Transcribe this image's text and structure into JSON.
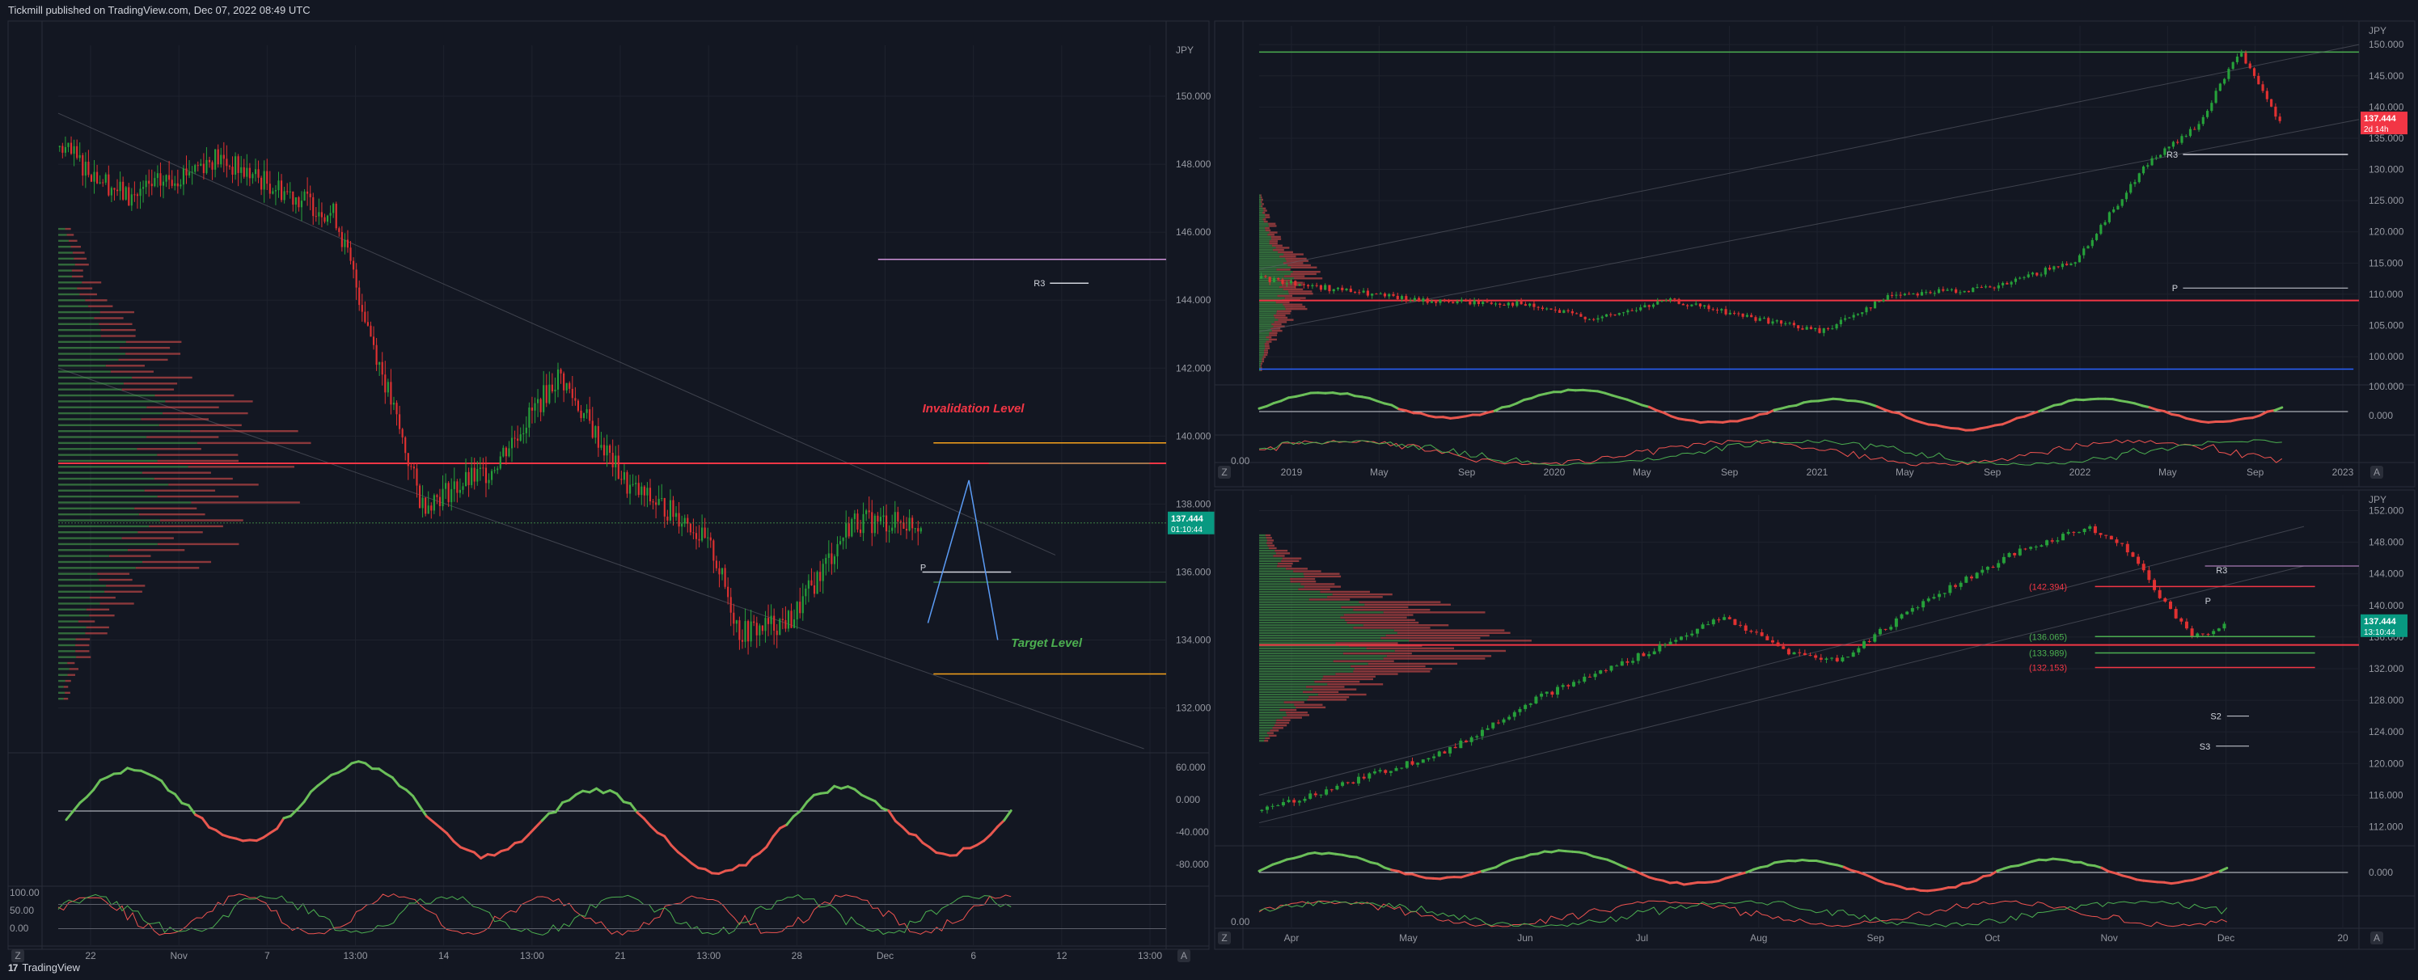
{
  "header": {
    "text": "Tickmill published on TradingView.com, Dec 07, 2022 08:49 UTC"
  },
  "footer": {
    "logo": "17",
    "brand": "TradingView"
  },
  "colors": {
    "bg": "#131722",
    "up": "#089981",
    "up_bright": "#26a69a",
    "green": "#4caf50",
    "red": "#f23645",
    "red_soft": "#ef5350",
    "grid": "#1e222d",
    "text": "#9598a1"
  },
  "chart_data": [
    {
      "id": "left",
      "type": "candlestick",
      "currency": "JPY",
      "price_axis": [
        "150.000",
        "148.000",
        "146.000",
        "144.000",
        "142.000",
        "140.000",
        "138.000",
        "136.000",
        "134.000",
        "132.000"
      ],
      "ylim": [
        130.8,
        151.5
      ],
      "time_axis": [
        "22",
        "Nov",
        "7",
        "13:00",
        "14",
        "13:00",
        "21",
        "13:00",
        "28",
        "Dec",
        "6",
        "12",
        "13:00"
      ],
      "last_price": "137.444",
      "countdown": "01:10:44",
      "annotations": [
        "Invalidation Level",
        "Target Level",
        "R3",
        "P"
      ],
      "levels": {
        "invalidation": 139.8,
        "target": 133.0,
        "poc": 139.2,
        "r3": 144.5,
        "pivot": 136.0,
        "last": 137.444
      },
      "rsi_axis": [
        "60.000",
        "0.000",
        "-40.000",
        "-80.000"
      ],
      "stoch_axis": [
        "100.00",
        "50.00",
        "0.00"
      ]
    },
    {
      "id": "top-right",
      "type": "candlestick",
      "currency": "JPY",
      "price_axis": [
        "150.000",
        "145.000",
        "140.000",
        "135.000",
        "130.000",
        "125.000",
        "120.000",
        "115.000",
        "110.000",
        "105.000",
        "100.000"
      ],
      "ylim": [
        96,
        153
      ],
      "time_axis": [
        "2019",
        "May",
        "Sep",
        "2020",
        "May",
        "Sep",
        "2021",
        "May",
        "Sep",
        "2022",
        "May",
        "Sep",
        "2023"
      ],
      "last_price": "137.444",
      "countdown": "2d 14h",
      "annotations": [
        "R3",
        "P"
      ],
      "rsi_axis": [
        "100.000",
        "0.000"
      ],
      "stoch_axis": [
        "0.00"
      ]
    },
    {
      "id": "bottom-right",
      "type": "candlestick",
      "currency": "JPY",
      "price_axis": [
        "152.000",
        "148.000",
        "144.000",
        "140.000",
        "136.000",
        "132.000",
        "128.000",
        "124.000",
        "120.000",
        "116.000",
        "112.000"
      ],
      "ylim": [
        110,
        154
      ],
      "time_axis": [
        "Apr",
        "May",
        "Jun",
        "Jul",
        "Aug",
        "Sep",
        "Oct",
        "Nov",
        "Dec",
        "20"
      ],
      "last_price": "137.444",
      "countdown": "13:10:44",
      "level_labels": [
        "(142.394)",
        "(136.065)",
        "(133.989)",
        "(132.153)"
      ],
      "annotations": [
        "R3",
        "P",
        "S2",
        "S3"
      ],
      "rsi_axis": [
        "0.000"
      ],
      "stoch_axis": [
        "0.00"
      ]
    }
  ]
}
